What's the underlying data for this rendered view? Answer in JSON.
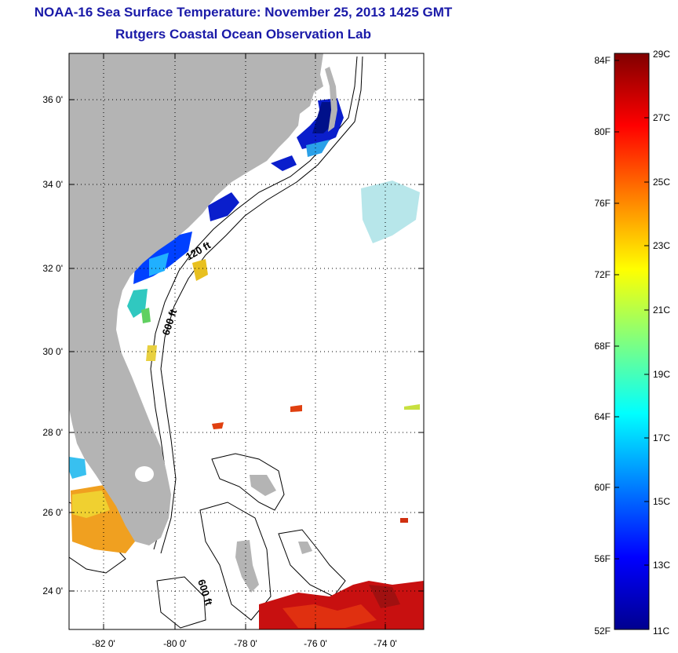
{
  "header": {
    "title": "NOAA-16 Sea Surface Temperature:  November 25, 2013 1425 GMT",
    "subtitle": "Rutgers Coastal Ocean Observation Lab"
  },
  "map": {
    "lat_labels": [
      "36 0'",
      "34 0'",
      "32 0'",
      "30 0'",
      "28 0'",
      "26 0'",
      "24 0'"
    ],
    "lon_labels": [
      "-82 0'",
      "-80 0'",
      "-78 0'",
      "-76 0'",
      "-74 0'"
    ],
    "depth_labels": [
      "120 ft",
      "600 ft",
      "600 ft"
    ],
    "colors": {
      "land": "#b4b4b4",
      "frame": "#000000",
      "grid": "#000000"
    }
  },
  "colorbar": {
    "fahrenheit_labels": [
      "84F",
      "80F",
      "76F",
      "72F",
      "68F",
      "64F",
      "60F",
      "56F",
      "52F"
    ],
    "celsius_labels": [
      "29C",
      "27C",
      "25C",
      "23C",
      "21C",
      "19C",
      "17C",
      "15C",
      "13C",
      "11C"
    ],
    "range_c": [
      11,
      29
    ],
    "colormap": "jet"
  }
}
